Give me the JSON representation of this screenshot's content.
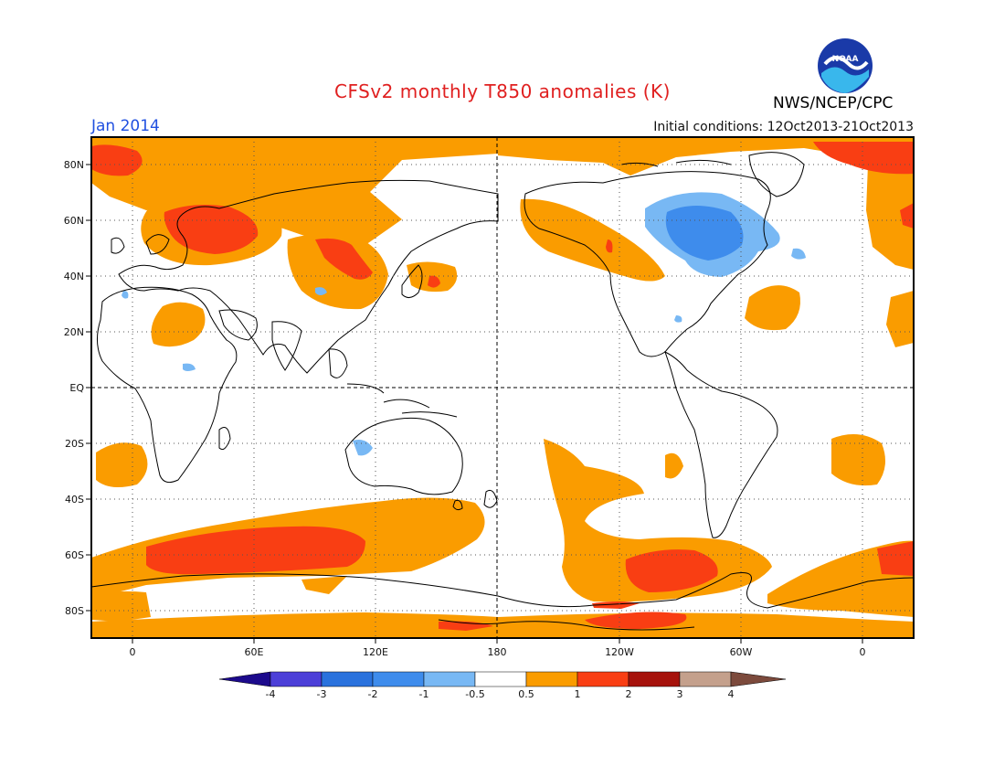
{
  "header": {
    "title": "CFSv2 monthly T850 anomalies (K)",
    "month": "Jan 2014",
    "initial_conditions": "Initial conditions: 12Oct2013-21Oct2013",
    "agency": "NWS/NCEP/CPC",
    "logo_text": "NOAA"
  },
  "map": {
    "projection": "cylindrical",
    "lat_labels": [
      "80N",
      "60N",
      "40N",
      "20N",
      "EQ",
      "20S",
      "40S",
      "60S",
      "80S"
    ],
    "lon_labels": [
      "0",
      "60E",
      "120E",
      "180",
      "120W",
      "60W",
      "0"
    ]
  },
  "legend": {
    "tick_labels": [
      "-4",
      "-3",
      "-2",
      "-1",
      "-0.5",
      "0.5",
      "1",
      "2",
      "3",
      "4"
    ],
    "colors": [
      "#1c0a8c",
      "#4c3fd8",
      "#2a72dd",
      "#3e8cec",
      "#78b8f4",
      "#ffffff",
      "#fa9c00",
      "#f93e13",
      "#a6120c",
      "#c4a08c",
      "#7c4a3c"
    ]
  },
  "colors": {
    "title": "#e02020",
    "month": "#2050e0",
    "warm1": "#fa9c00",
    "warm2": "#f93e13",
    "cool1": "#78b8f4",
    "cool2": "#3e8cec"
  }
}
